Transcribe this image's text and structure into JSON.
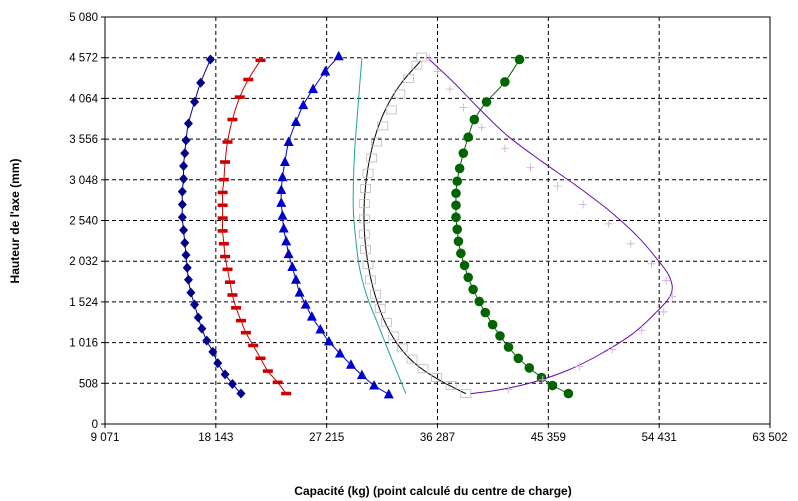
{
  "chart_data": {
    "type": "scatter",
    "title": "",
    "xlabel": "Capacité (kg) (point calculé du centre de charge)",
    "ylabel": "Hauteur de l'axe (mm)",
    "xlim": [
      9071,
      63502
    ],
    "ylim": [
      0,
      5080
    ],
    "x_ticks": [
      "9 071",
      "18 143",
      "27 215",
      "36 287",
      "45 359",
      "54 431",
      "63 502"
    ],
    "y_ticks": [
      "0",
      "508",
      "1 016",
      "1 524",
      "2 032",
      "2 540",
      "3 048",
      "3 556",
      "4 064",
      "4 572",
      "5 080"
    ],
    "grid": "dashed",
    "legend": "none",
    "series": [
      {
        "color": "#00008b",
        "marker": "diamond",
        "line": true,
        "points": [
          [
            20200,
            380
          ],
          [
            19500,
            500
          ],
          [
            18900,
            620
          ],
          [
            18300,
            760
          ],
          [
            17900,
            900
          ],
          [
            17400,
            1040
          ],
          [
            17000,
            1190
          ],
          [
            16700,
            1330
          ],
          [
            16400,
            1490
          ],
          [
            16100,
            1640
          ],
          [
            15900,
            1800
          ],
          [
            15800,
            1950
          ],
          [
            15700,
            2110
          ],
          [
            15600,
            2260
          ],
          [
            15500,
            2420
          ],
          [
            15400,
            2580
          ],
          [
            15400,
            2740
          ],
          [
            15400,
            2900
          ],
          [
            15500,
            3060
          ],
          [
            15500,
            3220
          ],
          [
            15600,
            3380
          ],
          [
            15700,
            3540
          ],
          [
            15900,
            3750
          ],
          [
            16400,
            4020
          ],
          [
            16900,
            4260
          ],
          [
            17700,
            4550
          ]
        ]
      },
      {
        "color": "#cc0000",
        "marker": "dash",
        "line": true,
        "points": [
          [
            23900,
            380
          ],
          [
            23200,
            520
          ],
          [
            22400,
            660
          ],
          [
            21800,
            820
          ],
          [
            21200,
            980
          ],
          [
            20600,
            1140
          ],
          [
            20200,
            1290
          ],
          [
            19800,
            1450
          ],
          [
            19500,
            1610
          ],
          [
            19300,
            1770
          ],
          [
            19100,
            1930
          ],
          [
            18900,
            2090
          ],
          [
            18800,
            2250
          ],
          [
            18700,
            2410
          ],
          [
            18700,
            2570
          ],
          [
            18700,
            2730
          ],
          [
            18700,
            2890
          ],
          [
            18800,
            3050
          ],
          [
            18900,
            3270
          ],
          [
            19100,
            3520
          ],
          [
            19500,
            3800
          ],
          [
            20100,
            4080
          ],
          [
            20800,
            4300
          ],
          [
            21800,
            4540
          ]
        ]
      },
      {
        "color": "#0000cc",
        "marker": "triangle",
        "line": true,
        "points": [
          [
            32300,
            370
          ],
          [
            31100,
            480
          ],
          [
            30100,
            610
          ],
          [
            29200,
            740
          ],
          [
            28300,
            880
          ],
          [
            27400,
            1030
          ],
          [
            26700,
            1180
          ],
          [
            26000,
            1340
          ],
          [
            25500,
            1490
          ],
          [
            25000,
            1640
          ],
          [
            24700,
            1800
          ],
          [
            24400,
            1960
          ],
          [
            24100,
            2120
          ],
          [
            23900,
            2280
          ],
          [
            23700,
            2440
          ],
          [
            23600,
            2600
          ],
          [
            23500,
            2760
          ],
          [
            23500,
            2920
          ],
          [
            23600,
            3080
          ],
          [
            23800,
            3270
          ],
          [
            24100,
            3520
          ],
          [
            24700,
            3770
          ],
          [
            25300,
            3980
          ],
          [
            26100,
            4180
          ],
          [
            27100,
            4400
          ],
          [
            28200,
            4590
          ]
        ]
      },
      {
        "color": "#20a0a0",
        "marker": "none",
        "line": true,
        "points": [
          [
            33700,
            380
          ],
          [
            33100,
            600
          ],
          [
            32300,
            900
          ],
          [
            31400,
            1250
          ],
          [
            30500,
            1600
          ],
          [
            29900,
            1950
          ],
          [
            29600,
            2300
          ],
          [
            29400,
            2650
          ],
          [
            29400,
            3000
          ],
          [
            29500,
            3400
          ],
          [
            29700,
            3800
          ],
          [
            29900,
            4200
          ],
          [
            30100,
            4570
          ]
        ]
      },
      {
        "color": "#000000",
        "marker": "none",
        "line": true,
        "points": [
          [
            38600,
            380
          ],
          [
            36300,
            560
          ],
          [
            34400,
            760
          ],
          [
            33000,
            1000
          ],
          [
            31900,
            1300
          ],
          [
            31100,
            1650
          ],
          [
            30600,
            2000
          ],
          [
            30300,
            2400
          ],
          [
            30300,
            2800
          ],
          [
            30600,
            3200
          ],
          [
            31200,
            3600
          ],
          [
            32100,
            3950
          ],
          [
            33300,
            4250
          ],
          [
            34900,
            4530
          ]
        ]
      },
      {
        "color": "#bbbbbb",
        "marker": "open-square",
        "line": false,
        "points": [
          [
            38600,
            380
          ],
          [
            37400,
            480
          ],
          [
            36200,
            580
          ],
          [
            35100,
            690
          ],
          [
            34200,
            810
          ],
          [
            33400,
            950
          ],
          [
            32700,
            1100
          ],
          [
            32100,
            1270
          ],
          [
            31600,
            1440
          ],
          [
            31200,
            1620
          ],
          [
            30800,
            1800
          ],
          [
            30600,
            1990
          ],
          [
            30400,
            2180
          ],
          [
            30300,
            2370
          ],
          [
            30300,
            2560
          ],
          [
            30300,
            2750
          ],
          [
            30400,
            2940
          ],
          [
            30600,
            3130
          ],
          [
            30900,
            3320
          ],
          [
            31300,
            3520
          ],
          [
            31800,
            3720
          ],
          [
            32500,
            3920
          ],
          [
            33200,
            4120
          ],
          [
            33900,
            4310
          ],
          [
            34600,
            4480
          ],
          [
            35000,
            4580
          ]
        ]
      },
      {
        "color": "#006400",
        "marker": "circle",
        "line": true,
        "points": [
          [
            47000,
            380
          ],
          [
            45700,
            480
          ],
          [
            44800,
            580
          ],
          [
            43800,
            700
          ],
          [
            42900,
            820
          ],
          [
            42100,
            960
          ],
          [
            41400,
            1100
          ],
          [
            40800,
            1240
          ],
          [
            40200,
            1390
          ],
          [
            39700,
            1530
          ],
          [
            39200,
            1680
          ],
          [
            38800,
            1830
          ],
          [
            38500,
            1980
          ],
          [
            38200,
            2130
          ],
          [
            38000,
            2280
          ],
          [
            37900,
            2430
          ],
          [
            37800,
            2580
          ],
          [
            37800,
            2730
          ],
          [
            37800,
            2880
          ],
          [
            37900,
            3030
          ],
          [
            38100,
            3190
          ],
          [
            38400,
            3380
          ],
          [
            38800,
            3580
          ],
          [
            39300,
            3800
          ],
          [
            40300,
            4020
          ],
          [
            41800,
            4270
          ],
          [
            43000,
            4550
          ]
        ]
      },
      {
        "color": "#6a0dad",
        "marker": "none",
        "line": true,
        "points": [
          [
            39000,
            380
          ],
          [
            41500,
            430
          ],
          [
            44300,
            530
          ],
          [
            47100,
            680
          ],
          [
            49700,
            880
          ],
          [
            52200,
            1120
          ],
          [
            54100,
            1380
          ],
          [
            55400,
            1620
          ],
          [
            55300,
            1830
          ],
          [
            54300,
            2050
          ],
          [
            52600,
            2350
          ],
          [
            50200,
            2680
          ],
          [
            47600,
            2980
          ],
          [
            44800,
            3280
          ],
          [
            42000,
            3600
          ],
          [
            39600,
            3950
          ],
          [
            37700,
            4250
          ],
          [
            35400,
            4580
          ]
        ]
      },
      {
        "color": "#d8b8d8",
        "marker": "plus",
        "line": false,
        "points": [
          [
            42100,
            430
          ],
          [
            44900,
            550
          ],
          [
            47900,
            720
          ],
          [
            50600,
            930
          ],
          [
            53000,
            1170
          ],
          [
            54800,
            1400
          ],
          [
            55500,
            1590
          ],
          [
            55000,
            1790
          ],
          [
            53800,
            2000
          ],
          [
            52100,
            2250
          ],
          [
            50300,
            2500
          ],
          [
            48200,
            2740
          ],
          [
            46100,
            2970
          ],
          [
            43900,
            3200
          ],
          [
            41800,
            3440
          ],
          [
            39900,
            3700
          ],
          [
            38400,
            3950
          ],
          [
            37300,
            4180
          ],
          [
            36300,
            4400
          ],
          [
            35600,
            4560
          ]
        ]
      }
    ]
  }
}
